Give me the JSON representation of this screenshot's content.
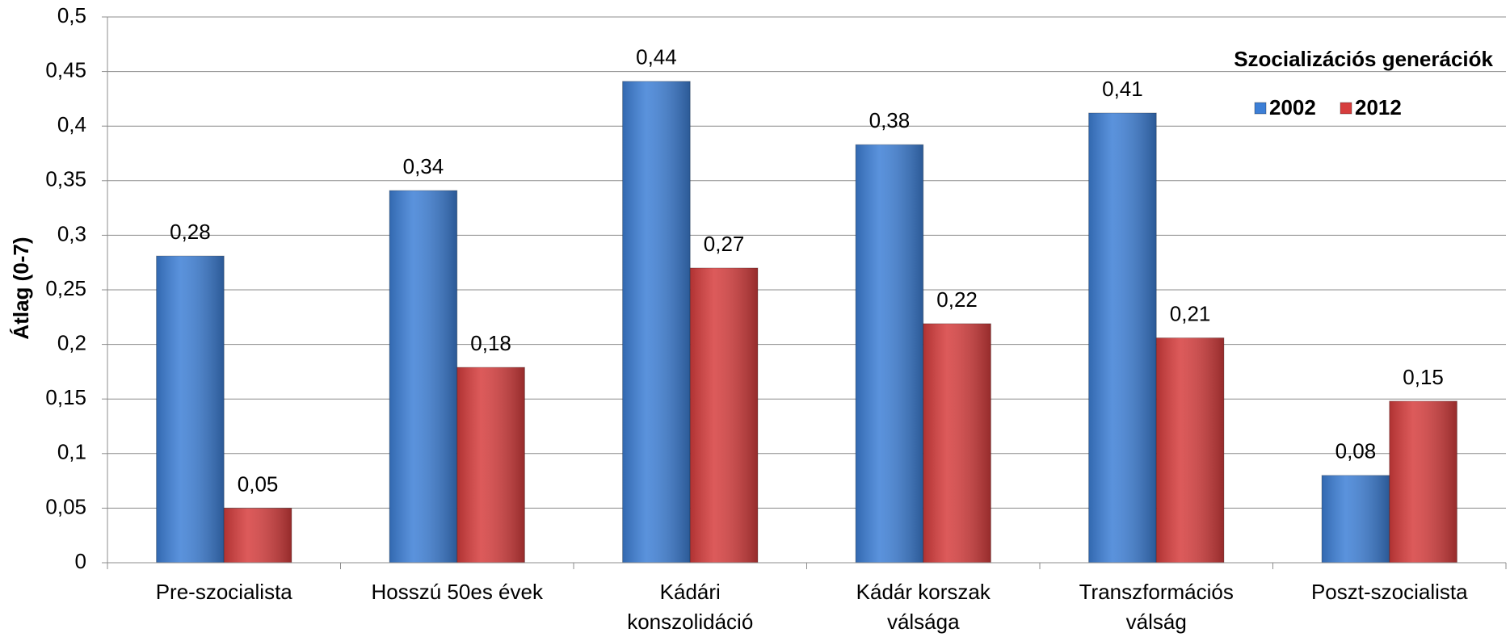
{
  "chart_data": {
    "type": "bar",
    "y_label": "Átlag (0-7)",
    "legend_title": "Szocializációs generációk",
    "categories": [
      [
        "Pre-szocialista"
      ],
      [
        "Hosszú 50es évek"
      ],
      [
        "Kádári",
        "konszolidáció"
      ],
      [
        "Kádár korszak",
        "válsága"
      ],
      [
        "Transzformációs",
        "válság"
      ],
      [
        "Poszt-szocialista"
      ]
    ],
    "series": [
      {
        "name": "2002",
        "color": "#3d7fd6",
        "values": [
          0.281,
          0.341,
          0.441,
          0.383,
          0.412,
          0.08
        ],
        "value_labels": [
          "0,28",
          "0,34",
          "0,44",
          "0,38",
          "0,41",
          "0,08"
        ]
      },
      {
        "name": "2012",
        "color": "#d63d3d",
        "values": [
          0.05,
          0.179,
          0.27,
          0.219,
          0.206,
          0.148
        ],
        "value_labels": [
          "0,05",
          "0,18",
          "0,27",
          "0,22",
          "0,21",
          "0,15"
        ]
      }
    ],
    "ylim": [
      0,
      0.5
    ],
    "yticks": [
      0,
      {
        "value": 0.05,
        "label": "0,05"
      },
      {
        "value": 0.1,
        "label": "0,1"
      },
      {
        "value": 0.15,
        "label": "0,15"
      },
      {
        "value": 0.2,
        "label": "0,2"
      },
      {
        "value": 0.25,
        "label": "0,25"
      },
      {
        "value": 0.3,
        "label": "0,3"
      },
      {
        "value": 0.35,
        "label": "0,35"
      },
      {
        "value": 0.4,
        "label": "0,4"
      },
      {
        "value": 0.45,
        "label": "0,45"
      },
      {
        "value": 0.5,
        "label": "0,5"
      }
    ],
    "grid": true,
    "legend": "upper right"
  }
}
